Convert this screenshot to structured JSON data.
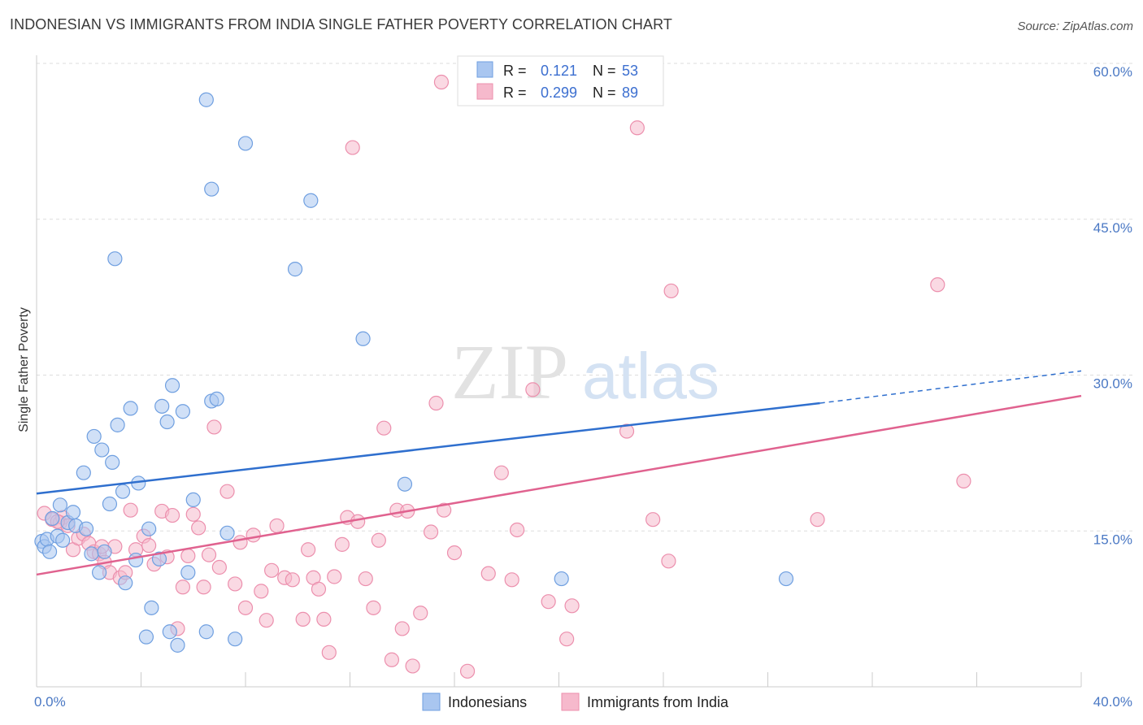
{
  "title": "INDONESIAN VS IMMIGRANTS FROM INDIA SINGLE FATHER POVERTY CORRELATION CHART",
  "source": "Source: ZipAtlas.com",
  "watermark": {
    "zip": "ZIP",
    "atlas": "atlas"
  },
  "chart_data": {
    "type": "scatter",
    "title": "INDONESIAN VS IMMIGRANTS FROM INDIA SINGLE FATHER POVERTY CORRELATION CHART",
    "xlabel": "",
    "ylabel": "Single Father Poverty",
    "xlim": [
      0,
      40
    ],
    "ylim": [
      0,
      60
    ],
    "x_tick_labels": [
      "0.0%",
      "40.0%"
    ],
    "y_ticks": [
      15,
      30,
      45,
      60
    ],
    "y_tick_labels": [
      "15.0%",
      "30.0%",
      "45.0%",
      "60.0%"
    ],
    "grid": true,
    "legend_position": "top-center",
    "colors": {
      "indonesians_fill": "#a9c6f0",
      "indonesians_stroke": "#6f9fe0",
      "indonesians_line": "#2f6fce",
      "india_fill": "#f6b9cc",
      "india_stroke": "#ec8fad",
      "india_line": "#e0628f",
      "tick_text": "#4a78c4",
      "grid": "#dddddd"
    },
    "legend": [
      {
        "r_label": "R =",
        "r_value": "0.121",
        "n_label": "N =",
        "n_value": "53"
      },
      {
        "r_label": "R =",
        "r_value": "0.299",
        "n_label": "N =",
        "n_value": "89"
      }
    ],
    "series": [
      {
        "name": "Indonesians",
        "trend": {
          "x": [
            0,
            30
          ],
          "y": [
            18.6,
            27.3
          ],
          "dashed_to": [
            40,
            30.4
          ]
        },
        "points": [
          [
            0.2,
            14.0
          ],
          [
            0.3,
            13.5
          ],
          [
            0.4,
            14.2
          ],
          [
            0.5,
            13.0
          ],
          [
            0.6,
            16.2
          ],
          [
            0.8,
            14.5
          ],
          [
            0.9,
            17.5
          ],
          [
            1.2,
            15.8
          ],
          [
            1.4,
            16.8
          ],
          [
            1.5,
            15.5
          ],
          [
            1.8,
            20.6
          ],
          [
            1.9,
            15.2
          ],
          [
            2.1,
            12.8
          ],
          [
            2.2,
            24.1
          ],
          [
            2.4,
            11.0
          ],
          [
            2.5,
            22.8
          ],
          [
            2.6,
            13.0
          ],
          [
            2.8,
            17.6
          ],
          [
            2.9,
            21.6
          ],
          [
            3.1,
            25.2
          ],
          [
            3.3,
            18.8
          ],
          [
            3.4,
            10.0
          ],
          [
            3.6,
            26.8
          ],
          [
            3.8,
            12.2
          ],
          [
            3.9,
            19.6
          ],
          [
            4.2,
            4.8
          ],
          [
            4.3,
            15.2
          ],
          [
            4.4,
            7.6
          ],
          [
            4.7,
            12.3
          ],
          [
            4.8,
            27.0
          ],
          [
            5.0,
            25.5
          ],
          [
            5.1,
            5.3
          ],
          [
            5.2,
            29.0
          ],
          [
            5.4,
            4.0
          ],
          [
            5.6,
            26.5
          ],
          [
            5.8,
            11.0
          ],
          [
            6.0,
            18.0
          ],
          [
            6.5,
            5.3
          ],
          [
            6.7,
            27.5
          ],
          [
            6.9,
            27.7
          ],
          [
            7.3,
            14.8
          ],
          [
            7.6,
            4.6
          ],
          [
            3.0,
            41.2
          ],
          [
            6.5,
            56.5
          ],
          [
            6.7,
            47.9
          ],
          [
            8.0,
            52.3
          ],
          [
            9.9,
            40.2
          ],
          [
            10.5,
            46.8
          ],
          [
            12.5,
            33.5
          ],
          [
            14.1,
            19.5
          ],
          [
            20.1,
            10.4
          ],
          [
            28.7,
            10.4
          ],
          [
            1.0,
            14.1
          ]
        ]
      },
      {
        "name": "Immigrants from India",
        "trend": {
          "x": [
            0,
            40
          ],
          "y": [
            10.8,
            28.0
          ]
        },
        "points": [
          [
            0.3,
            16.7
          ],
          [
            0.6,
            16.1
          ],
          [
            0.9,
            15.8
          ],
          [
            1.0,
            16.3
          ],
          [
            1.2,
            15.5
          ],
          [
            1.4,
            13.2
          ],
          [
            1.6,
            14.3
          ],
          [
            1.8,
            14.7
          ],
          [
            2.0,
            13.8
          ],
          [
            2.2,
            13.0
          ],
          [
            2.4,
            12.8
          ],
          [
            2.6,
            12.0
          ],
          [
            2.8,
            11.0
          ],
          [
            3.0,
            13.5
          ],
          [
            3.2,
            10.5
          ],
          [
            3.4,
            11.0
          ],
          [
            3.6,
            17.0
          ],
          [
            3.8,
            13.2
          ],
          [
            4.1,
            14.5
          ],
          [
            4.3,
            13.6
          ],
          [
            4.5,
            11.8
          ],
          [
            4.8,
            16.9
          ],
          [
            5.0,
            12.5
          ],
          [
            5.2,
            16.5
          ],
          [
            5.4,
            5.6
          ],
          [
            5.6,
            9.6
          ],
          [
            5.8,
            12.6
          ],
          [
            6.0,
            16.6
          ],
          [
            6.2,
            15.3
          ],
          [
            6.4,
            9.6
          ],
          [
            6.6,
            12.7
          ],
          [
            6.8,
            25.0
          ],
          [
            7.0,
            11.5
          ],
          [
            7.3,
            18.8
          ],
          [
            7.6,
            9.9
          ],
          [
            7.8,
            13.9
          ],
          [
            8.0,
            7.6
          ],
          [
            8.3,
            14.6
          ],
          [
            8.6,
            9.2
          ],
          [
            8.8,
            6.4
          ],
          [
            9.0,
            11.2
          ],
          [
            9.2,
            15.5
          ],
          [
            9.5,
            10.5
          ],
          [
            9.8,
            10.3
          ],
          [
            10.2,
            6.5
          ],
          [
            10.4,
            13.2
          ],
          [
            10.6,
            10.5
          ],
          [
            10.8,
            9.4
          ],
          [
            11.0,
            6.5
          ],
          [
            11.2,
            3.3
          ],
          [
            11.4,
            10.6
          ],
          [
            11.7,
            13.7
          ],
          [
            11.9,
            16.3
          ],
          [
            12.1,
            51.9
          ],
          [
            12.3,
            15.9
          ],
          [
            12.6,
            10.4
          ],
          [
            12.9,
            7.6
          ],
          [
            13.1,
            14.1
          ],
          [
            13.3,
            24.9
          ],
          [
            13.6,
            2.6
          ],
          [
            13.8,
            17.0
          ],
          [
            14.0,
            5.6
          ],
          [
            14.2,
            16.9
          ],
          [
            14.4,
            2.0
          ],
          [
            14.7,
            7.1
          ],
          [
            15.1,
            14.9
          ],
          [
            15.3,
            27.3
          ],
          [
            15.6,
            17.0
          ],
          [
            15.5,
            58.2
          ],
          [
            16.0,
            12.9
          ],
          [
            16.5,
            1.5
          ],
          [
            17.3,
            10.9
          ],
          [
            17.8,
            20.6
          ],
          [
            18.2,
            10.3
          ],
          [
            18.4,
            15.1
          ],
          [
            19.0,
            28.6
          ],
          [
            19.6,
            8.2
          ],
          [
            20.3,
            4.6
          ],
          [
            20.5,
            7.8
          ],
          [
            22.6,
            24.6
          ],
          [
            23.0,
            53.8
          ],
          [
            23.6,
            16.1
          ],
          [
            24.2,
            12.1
          ],
          [
            24.3,
            38.1
          ],
          [
            29.9,
            16.1
          ],
          [
            34.5,
            38.7
          ],
          [
            35.5,
            19.8
          ],
          [
            0.8,
            15.9
          ],
          [
            2.5,
            13.5
          ]
        ]
      }
    ]
  },
  "bottom_legend": [
    {
      "label": "Indonesians"
    },
    {
      "label": "Immigrants from India"
    }
  ]
}
